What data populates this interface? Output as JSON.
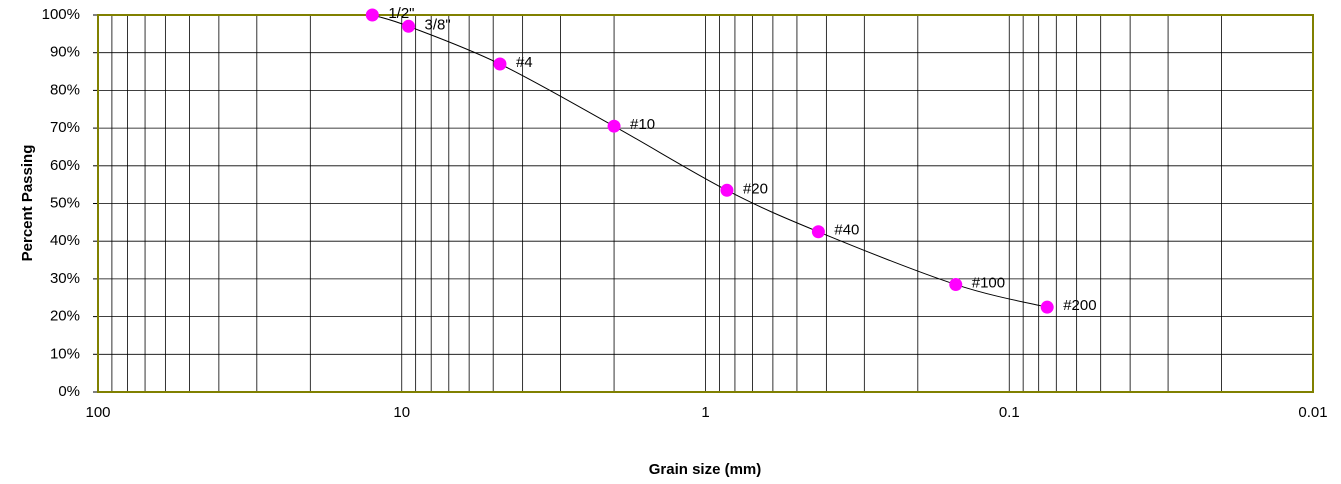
{
  "chart_data": {
    "type": "line",
    "x_label": "Grain size (mm)",
    "y_label": "Percent Passing",
    "xscale": "log",
    "xlim": [
      100,
      0.01
    ],
    "xticks": [
      100,
      10,
      1,
      0.1,
      0.01
    ],
    "xminorticks": [
      90,
      80,
      70,
      60,
      50,
      40,
      30,
      20,
      9,
      8,
      7,
      6,
      5,
      4,
      3,
      2,
      0.9,
      0.8,
      0.7,
      0.6,
      0.5,
      0.4,
      0.3,
      0.2,
      0.09,
      0.08,
      0.07,
      0.06,
      0.05,
      0.04,
      0.03,
      0.02
    ],
    "ylim": [
      0,
      100
    ],
    "yticks": [
      {
        "value": 0,
        "label": "0%"
      },
      {
        "value": 10,
        "label": "10%"
      },
      {
        "value": 20,
        "label": "20%"
      },
      {
        "value": 30,
        "label": "30%"
      },
      {
        "value": 40,
        "label": "40%"
      },
      {
        "value": 50,
        "label": "50%"
      },
      {
        "value": 60,
        "label": "60%"
      },
      {
        "value": 70,
        "label": "70%"
      },
      {
        "value": 80,
        "label": "80%"
      },
      {
        "value": 90,
        "label": "90%"
      },
      {
        "value": 100,
        "label": "100%"
      }
    ],
    "grid": true,
    "frame_color": "#808000",
    "series": [
      {
        "color": "#ff00ff",
        "line_color": "#000000",
        "x": [
          12.5,
          9.5,
          4.75,
          2.0,
          0.85,
          0.425,
          0.15,
          0.075
        ],
        "values": [
          100,
          97,
          87,
          70.5,
          53.5,
          42.5,
          28.5,
          22.5
        ],
        "point_labels": [
          "1/2\"",
          "3/8\"",
          "#4",
          "#10",
          "#20",
          "#40",
          "#100",
          "#200"
        ]
      }
    ]
  }
}
